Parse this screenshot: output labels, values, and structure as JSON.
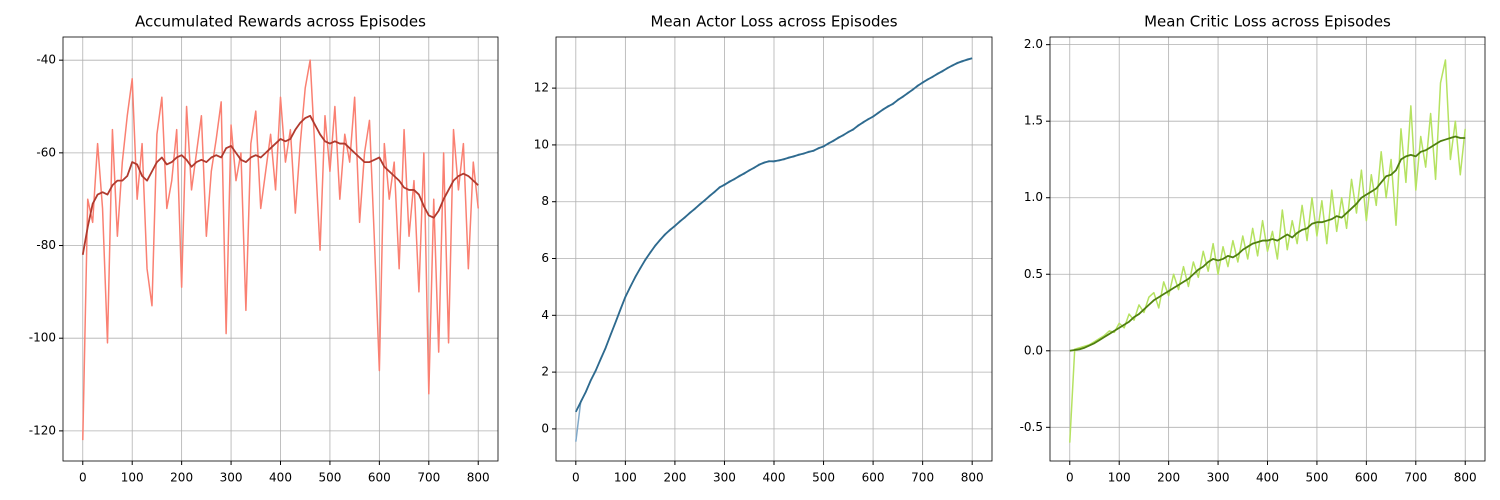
{
  "chart_data": [
    {
      "type": "line",
      "title": "Accumulated Rewards across Episodes",
      "x": [
        0,
        10,
        20,
        30,
        40,
        50,
        60,
        70,
        80,
        90,
        100,
        110,
        120,
        130,
        140,
        150,
        160,
        170,
        180,
        190,
        200,
        210,
        220,
        230,
        240,
        250,
        260,
        270,
        280,
        290,
        300,
        310,
        320,
        330,
        340,
        350,
        360,
        370,
        380,
        390,
        400,
        410,
        420,
        430,
        440,
        450,
        460,
        470,
        480,
        490,
        500,
        510,
        520,
        530,
        540,
        550,
        560,
        570,
        580,
        590,
        600,
        610,
        620,
        630,
        640,
        650,
        660,
        670,
        680,
        690,
        700,
        710,
        720,
        730,
        740,
        750,
        760,
        770,
        780,
        790,
        800
      ],
      "series": [
        {
          "color": "#fa8072",
          "values": [
            -122,
            -70,
            -75,
            -58,
            -72,
            -101,
            -55,
            -78,
            -62,
            -52,
            -44,
            -70,
            -58,
            -85,
            -93,
            -56,
            -48,
            -72,
            -66,
            -55,
            -89,
            -50,
            -68,
            -60,
            -52,
            -78,
            -64,
            -57,
            -49,
            -99,
            -54,
            -66,
            -60,
            -94,
            -58,
            -51,
            -72,
            -64,
            -56,
            -68,
            -48,
            -62,
            -55,
            -73,
            -58,
            -46,
            -40,
            -60,
            -81,
            -52,
            -64,
            -50,
            -70,
            -56,
            -62,
            -48,
            -75,
            -60,
            -53,
            -79,
            -107,
            -58,
            -70,
            -62,
            -85,
            -55,
            -78,
            -66,
            -90,
            -60,
            -112,
            -70,
            -103,
            -60,
            -101,
            -55,
            -68,
            -58,
            -85,
            -62,
            -72
          ]
        },
        {
          "color": "#b03a2e",
          "values": [
            -82,
            -76,
            -71,
            -69,
            -68.5,
            -69,
            -67,
            -66,
            -66,
            -65,
            -62,
            -62.5,
            -65,
            -66,
            -64,
            -62,
            -61,
            -62.5,
            -62,
            -61,
            -60.5,
            -61.5,
            -63,
            -62,
            -61.5,
            -62,
            -61,
            -60.5,
            -61,
            -59,
            -58.5,
            -60,
            -61.5,
            -62,
            -61,
            -60.5,
            -61,
            -60,
            -59,
            -58,
            -57,
            -57.5,
            -57,
            -55,
            -53.5,
            -52.5,
            -52,
            -54,
            -56,
            -57.5,
            -58,
            -57.5,
            -58,
            -58,
            -59,
            -60,
            -61,
            -62,
            -62,
            -61.5,
            -61,
            -63,
            -64,
            -65,
            -66,
            -67.5,
            -68,
            -68,
            -69,
            -71.5,
            -73.5,
            -74,
            -72.5,
            -70,
            -68,
            -66,
            -65,
            -64.5,
            -65,
            -66,
            -67
          ]
        }
      ],
      "xlim": [
        -40,
        840
      ],
      "ylim": [
        -126.5,
        -35
      ],
      "xticks": [
        0,
        100,
        200,
        300,
        400,
        500,
        600,
        700,
        800
      ],
      "yticks": [
        -120,
        -100,
        -80,
        -60,
        -40
      ],
      "grid": true
    },
    {
      "type": "line",
      "title": "Mean Actor Loss across Episodes",
      "x": [
        0,
        10,
        20,
        30,
        40,
        50,
        60,
        70,
        80,
        90,
        100,
        110,
        120,
        130,
        140,
        150,
        160,
        170,
        180,
        190,
        200,
        210,
        220,
        230,
        240,
        250,
        260,
        270,
        280,
        290,
        300,
        310,
        320,
        330,
        340,
        350,
        360,
        370,
        380,
        390,
        400,
        410,
        420,
        430,
        440,
        450,
        460,
        470,
        480,
        490,
        500,
        510,
        520,
        530,
        540,
        550,
        560,
        570,
        580,
        590,
        600,
        610,
        620,
        630,
        640,
        650,
        660,
        670,
        680,
        690,
        700,
        710,
        720,
        730,
        740,
        750,
        760,
        770,
        780,
        790,
        800
      ],
      "series": [
        {
          "color": "#7fa8c9",
          "values": [
            -0.45,
            0.97,
            1.28,
            1.72,
            2.03,
            2.47,
            2.83,
            3.32,
            3.73,
            4.22,
            4.63,
            5.02,
            5.33,
            5.67,
            5.93,
            6.22,
            6.43,
            6.67,
            6.83,
            7.02,
            7.13,
            7.32,
            7.43,
            7.62,
            7.73,
            7.92,
            8.03,
            8.22,
            8.33,
            8.52,
            8.58,
            8.72,
            8.78,
            8.92,
            8.98,
            9.12,
            9.18,
            9.32,
            9.36,
            9.44,
            9.4,
            9.47,
            9.48,
            9.57,
            9.58,
            9.67,
            9.68,
            9.77,
            9.78,
            9.9,
            9.93,
            10.07,
            10.13,
            10.27,
            10.33,
            10.47,
            10.53,
            10.7,
            10.78,
            10.92,
            10.98,
            11.14,
            11.23,
            11.37,
            11.43,
            11.6,
            11.68,
            11.84,
            11.93,
            12.1,
            12.18,
            12.32,
            12.38,
            12.52,
            12.58,
            12.72,
            12.78,
            12.9,
            12.93,
            13.02,
            13.05
          ]
        },
        {
          "color": "#2e6a8e",
          "values": [
            0.6,
            0.95,
            1.3,
            1.7,
            2.05,
            2.45,
            2.85,
            3.3,
            3.75,
            4.2,
            4.65,
            5.0,
            5.35,
            5.65,
            5.95,
            6.2,
            6.45,
            6.65,
            6.85,
            7.0,
            7.15,
            7.3,
            7.45,
            7.6,
            7.75,
            7.9,
            8.05,
            8.2,
            8.35,
            8.5,
            8.6,
            8.7,
            8.8,
            8.9,
            9.0,
            9.1,
            9.2,
            9.3,
            9.38,
            9.42,
            9.43,
            9.45,
            9.5,
            9.55,
            9.6,
            9.65,
            9.7,
            9.75,
            9.8,
            9.88,
            9.95,
            10.05,
            10.15,
            10.25,
            10.35,
            10.45,
            10.55,
            10.68,
            10.8,
            10.9,
            11.0,
            11.12,
            11.25,
            11.35,
            11.45,
            11.58,
            11.7,
            11.82,
            11.95,
            12.08,
            12.2,
            12.3,
            12.4,
            12.5,
            12.6,
            12.7,
            12.8,
            12.88,
            12.95,
            13.0,
            13.05
          ]
        }
      ],
      "xlim": [
        -40,
        840
      ],
      "ylim": [
        -1.13,
        13.8
      ],
      "xticks": [
        0,
        100,
        200,
        300,
        400,
        500,
        600,
        700,
        800
      ],
      "yticks": [
        0,
        2,
        4,
        6,
        8,
        10,
        12
      ],
      "grid": true
    },
    {
      "type": "line",
      "title": "Mean Critic Loss across Episodes",
      "x": [
        0,
        10,
        20,
        30,
        40,
        50,
        60,
        70,
        80,
        90,
        100,
        110,
        120,
        130,
        140,
        150,
        160,
        170,
        180,
        190,
        200,
        210,
        220,
        230,
        240,
        250,
        260,
        270,
        280,
        290,
        300,
        310,
        320,
        330,
        340,
        350,
        360,
        370,
        380,
        390,
        400,
        410,
        420,
        430,
        440,
        450,
        460,
        470,
        480,
        490,
        500,
        510,
        520,
        530,
        540,
        550,
        560,
        570,
        580,
        590,
        600,
        610,
        620,
        630,
        640,
        650,
        660,
        670,
        680,
        690,
        700,
        710,
        720,
        730,
        740,
        750,
        760,
        770,
        780,
        790,
        800
      ],
      "series": [
        {
          "color": "#b5e261",
          "values": [
            -0.6,
            0.01,
            0.02,
            0.03,
            0.04,
            0.06,
            0.08,
            0.1,
            0.13,
            0.12,
            0.18,
            0.15,
            0.24,
            0.2,
            0.3,
            0.25,
            0.35,
            0.38,
            0.28,
            0.45,
            0.36,
            0.5,
            0.4,
            0.55,
            0.42,
            0.58,
            0.48,
            0.65,
            0.52,
            0.7,
            0.5,
            0.68,
            0.55,
            0.72,
            0.58,
            0.75,
            0.6,
            0.8,
            0.62,
            0.85,
            0.65,
            0.78,
            0.6,
            0.92,
            0.66,
            0.85,
            0.7,
            0.95,
            0.72,
            1.0,
            0.75,
            0.98,
            0.7,
            1.05,
            0.78,
            1.0,
            0.8,
            1.12,
            0.9,
            1.18,
            0.85,
            1.15,
            0.95,
            1.3,
            1.0,
            1.25,
            0.82,
            1.45,
            1.1,
            1.6,
            1.05,
            1.4,
            1.2,
            1.55,
            1.12,
            1.75,
            1.9,
            1.25,
            1.5,
            1.15,
            1.45
          ]
        },
        {
          "color": "#4f7f0f",
          "values": [
            0,
            0.005,
            0.01,
            0.02,
            0.035,
            0.05,
            0.07,
            0.09,
            0.11,
            0.13,
            0.15,
            0.17,
            0.19,
            0.22,
            0.24,
            0.27,
            0.3,
            0.33,
            0.35,
            0.37,
            0.39,
            0.41,
            0.43,
            0.45,
            0.47,
            0.5,
            0.53,
            0.55,
            0.58,
            0.6,
            0.59,
            0.6,
            0.62,
            0.61,
            0.63,
            0.66,
            0.68,
            0.7,
            0.71,
            0.72,
            0.72,
            0.73,
            0.72,
            0.74,
            0.76,
            0.74,
            0.77,
            0.79,
            0.8,
            0.83,
            0.84,
            0.84,
            0.85,
            0.86,
            0.88,
            0.87,
            0.9,
            0.93,
            0.96,
            1.0,
            1.02,
            1.04,
            1.06,
            1.1,
            1.14,
            1.15,
            1.18,
            1.25,
            1.27,
            1.28,
            1.27,
            1.3,
            1.31,
            1.33,
            1.35,
            1.37,
            1.38,
            1.39,
            1.4,
            1.39,
            1.39
          ]
        }
      ],
      "xlim": [
        -40,
        840
      ],
      "ylim": [
        -0.72,
        2.05
      ],
      "xticks": [
        0,
        100,
        200,
        300,
        400,
        500,
        600,
        700,
        800
      ],
      "yticks": [
        -0.5,
        {
          "value": 0,
          "label": "0.0"
        },
        0.5,
        {
          "value": 1,
          "label": "1.0"
        },
        1.5,
        {
          "value": 2,
          "label": "2.0"
        }
      ],
      "grid": true
    }
  ]
}
